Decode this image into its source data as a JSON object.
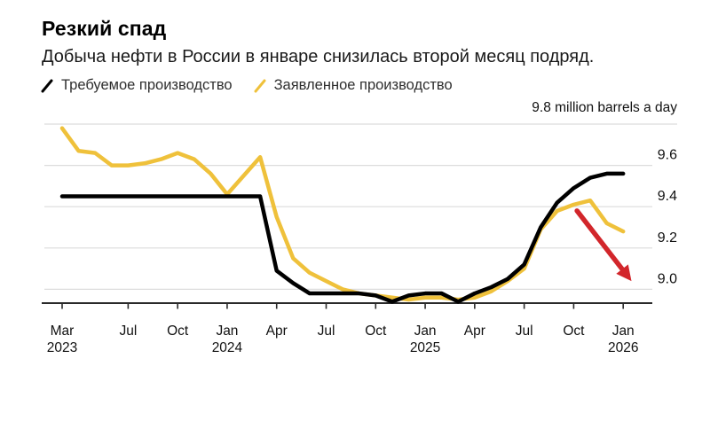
{
  "header": {
    "title": "Резкий спад",
    "subtitle": "Добыча нефти в России в январе снизилась второй месяц подряд.",
    "unit_label": "9.8 million barrels a day"
  },
  "colors": {
    "required_line": "#000000",
    "declared_line": "#efc13b",
    "arrow": "#d2262b",
    "gridline": "#dcdcdc",
    "axis": "#2a2a2a"
  },
  "chart_data": {
    "type": "line",
    "title": "Резкий спад",
    "subtitle": "Добыча нефти в России в январе снизилась второй месяц подряд.",
    "ylabel": "9.8 million barrels a day",
    "ylim": [
      8.9,
      9.8
    ],
    "grid": "horizontal",
    "legend_position": "top-left",
    "x": [
      "Mar 2023",
      "Apr 2023",
      "May 2023",
      "Jun 2023",
      "Jul 2023",
      "Aug 2023",
      "Sep 2023",
      "Oct 2023",
      "Nov 2023",
      "Dec 2023",
      "Jan 2024",
      "Feb 2024",
      "Mar 2024",
      "Apr 2024",
      "May 2024",
      "Jun 2024",
      "Jul 2024",
      "Aug 2024",
      "Sep 2024",
      "Oct 2024",
      "Nov 2024",
      "Dec 2024",
      "Jan 2025",
      "Feb 2025",
      "Mar 2025",
      "Apr 2025",
      "May 2025",
      "Jun 2025",
      "Jul 2025",
      "Aug 2025",
      "Sep 2025",
      "Oct 2025",
      "Nov 2025",
      "Dec 2025",
      "Jan 2026"
    ],
    "series": [
      {
        "name": "Требуемое производство",
        "color": "#000000",
        "values": [
          9.45,
          9.45,
          9.45,
          9.45,
          9.45,
          9.45,
          9.45,
          9.45,
          9.45,
          9.45,
          9.45,
          9.45,
          9.45,
          9.09,
          9.03,
          8.98,
          8.98,
          8.98,
          8.98,
          8.97,
          8.94,
          8.97,
          8.98,
          8.98,
          8.94,
          8.98,
          9.01,
          9.05,
          9.12,
          9.3,
          9.42,
          9.49,
          9.54,
          9.56,
          9.56
        ]
      },
      {
        "name": "Заявленное производство",
        "color": "#efc13b",
        "values": [
          9.78,
          9.67,
          9.66,
          9.6,
          9.6,
          9.61,
          9.63,
          9.66,
          9.63,
          9.56,
          9.46,
          9.55,
          9.64,
          9.35,
          9.15,
          9.08,
          9.04,
          9.0,
          8.98,
          8.97,
          8.96,
          8.95,
          8.96,
          8.96,
          8.95,
          8.96,
          8.99,
          9.04,
          9.1,
          9.29,
          9.38,
          9.41,
          9.43,
          9.32,
          9.28
        ]
      }
    ],
    "y_gridlines": [
      9.8,
      9.6,
      9.4,
      9.2,
      9.0
    ],
    "y_tick_labels": [
      "9.6",
      "9.4",
      "9.2",
      "9.0"
    ],
    "x_ticks": [
      {
        "i": 0,
        "month": "Mar",
        "year": "2023"
      },
      {
        "i": 4,
        "month": "Jul"
      },
      {
        "i": 7,
        "month": "Oct"
      },
      {
        "i": 10,
        "month": "Jan",
        "year": "2024"
      },
      {
        "i": 13,
        "month": "Apr"
      },
      {
        "i": 16,
        "month": "Jul"
      },
      {
        "i": 19,
        "month": "Oct"
      },
      {
        "i": 22,
        "month": "Jan",
        "year": "2025"
      },
      {
        "i": 25,
        "month": "Apr"
      },
      {
        "i": 28,
        "month": "Jul"
      },
      {
        "i": 31,
        "month": "Oct"
      },
      {
        "i": 34,
        "month": "Jan",
        "year": "2026"
      }
    ],
    "annotations": [
      {
        "type": "arrow",
        "color": "#d2262b",
        "from": {
          "xi": 31.2,
          "value": 9.38
        },
        "to": {
          "xi": 34.5,
          "value": 9.04
        }
      }
    ]
  }
}
